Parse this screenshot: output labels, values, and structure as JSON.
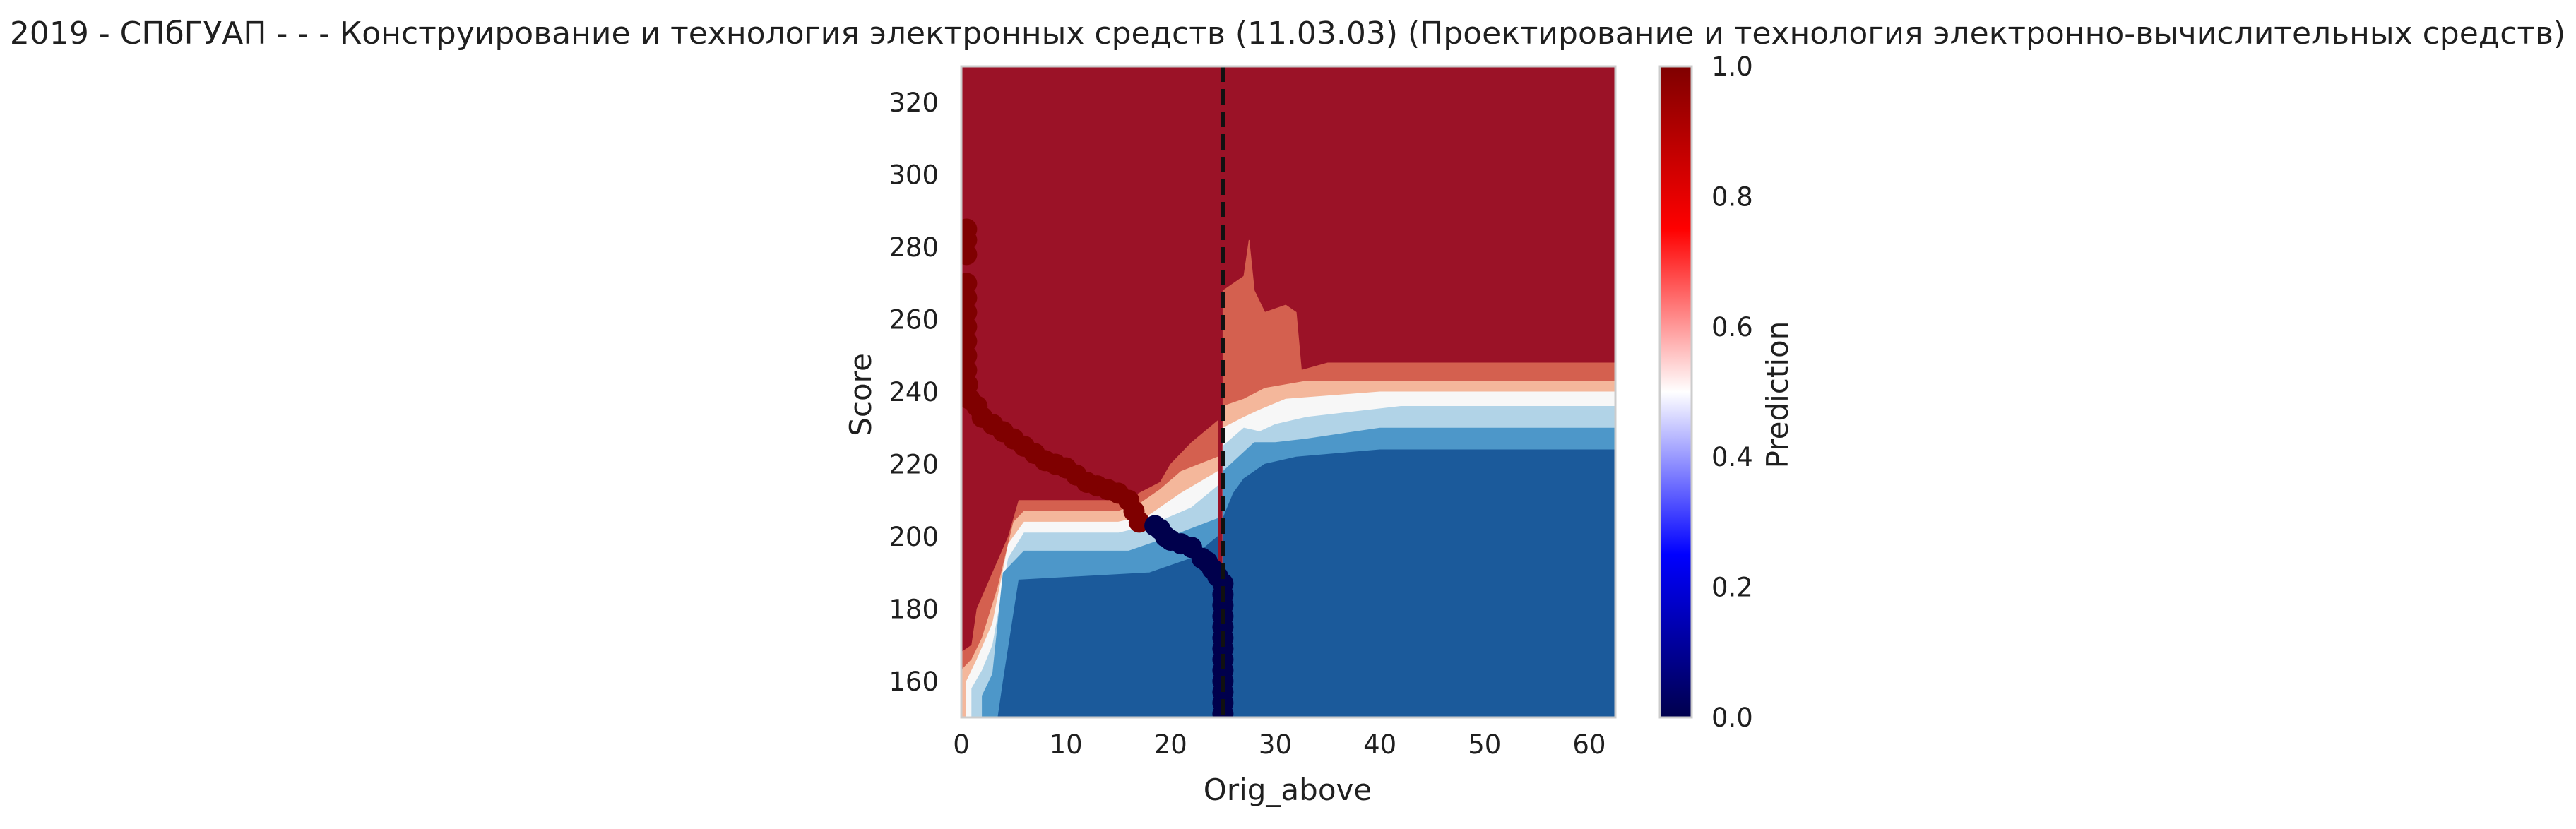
{
  "chart_data": {
    "type": "heatmap",
    "title": "2019 - СПбГУАП - - - Конструирование и технология электронных средств (11.03.03) (Проектирование и технология электронно-вычислительных средств)",
    "xlabel": "Orig_above",
    "ylabel": "Score",
    "xlim": [
      0,
      62.5
    ],
    "ylim": [
      150,
      330
    ],
    "x_ticks": [
      "0",
      "10",
      "20",
      "30",
      "40",
      "50",
      "60"
    ],
    "y_ticks": [
      "160",
      "180",
      "200",
      "220",
      "240",
      "260",
      "280",
      "300",
      "320"
    ],
    "threshold_x": 25,
    "colormap": "seismic",
    "colorbar": {
      "label": "Prediction",
      "range": [
        0,
        1
      ],
      "ticks": [
        "0.0",
        "0.2",
        "0.4",
        "0.6",
        "0.8",
        "1.0"
      ]
    },
    "grid": false,
    "contour_levels": [
      {
        "level": 0.9,
        "color": "#9b1227"
      },
      {
        "level": 0.75,
        "color": "#d4604f"
      },
      {
        "level": 0.6,
        "color": "#f4b79b"
      },
      {
        "level": 0.5,
        "color": "#f7f7f7"
      },
      {
        "level": 0.4,
        "color": "#b1d3e7"
      },
      {
        "level": 0.3,
        "color": "#4d97c9"
      },
      {
        "level": 0.15,
        "color": "#1b5a9b"
      }
    ],
    "points_pred_1": [
      [
        0.5,
        285
      ],
      [
        0.5,
        282
      ],
      [
        0.5,
        278
      ],
      [
        0.5,
        270
      ],
      [
        0.5,
        266
      ],
      [
        0.5,
        262
      ],
      [
        0.5,
        258
      ],
      [
        0.5,
        254
      ],
      [
        0.5,
        250
      ],
      [
        0.5,
        246
      ],
      [
        0.6,
        242
      ],
      [
        0.8,
        238
      ],
      [
        1.5,
        236
      ],
      [
        2,
        233
      ],
      [
        3,
        231
      ],
      [
        4,
        229
      ],
      [
        5,
        227
      ],
      [
        6,
        225
      ],
      [
        7,
        223
      ],
      [
        8,
        221
      ],
      [
        9,
        220
      ],
      [
        10,
        219
      ],
      [
        11,
        217
      ],
      [
        12,
        215
      ],
      [
        13,
        214
      ],
      [
        14,
        213
      ],
      [
        15,
        212
      ],
      [
        16,
        210
      ],
      [
        16.5,
        207
      ],
      [
        17,
        204
      ]
    ],
    "points_pred_0": [
      [
        18.5,
        203
      ],
      [
        19,
        202
      ],
      [
        19.5,
        200
      ],
      [
        20,
        199
      ],
      [
        21,
        198
      ],
      [
        22,
        197
      ],
      [
        23,
        194
      ],
      [
        23.5,
        193
      ],
      [
        24,
        191
      ],
      [
        24.5,
        189
      ],
      [
        25,
        187
      ],
      [
        25,
        184
      ],
      [
        25,
        181
      ],
      [
        25,
        178
      ],
      [
        25,
        175
      ],
      [
        25,
        172
      ],
      [
        25,
        169
      ],
      [
        25,
        166
      ],
      [
        25,
        163
      ],
      [
        25,
        160
      ],
      [
        25,
        157
      ],
      [
        25,
        154
      ],
      [
        25,
        151
      ]
    ]
  }
}
